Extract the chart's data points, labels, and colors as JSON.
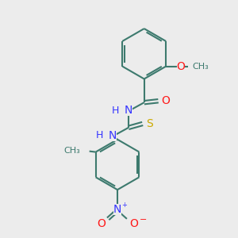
{
  "bg_color": "#ececec",
  "bond_color": "#3d7a6e",
  "bond_width": 1.5,
  "atom_colors": {
    "N": "#3535ff",
    "O": "#ff1a1a",
    "S": "#ccaa00",
    "C": "#3d7a6e",
    "H": "#3d7a6e"
  },
  "font_size": 9
}
